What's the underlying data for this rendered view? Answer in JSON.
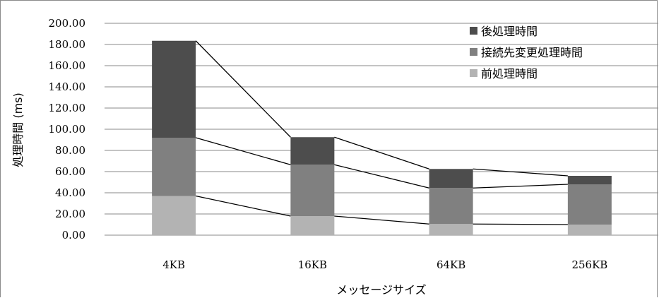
{
  "chart_data": {
    "type": "bar",
    "stacked": true,
    "categories": [
      "4KB",
      "16KB",
      "64KB",
      "256KB"
    ],
    "series": [
      {
        "name": "前処理時間",
        "values": [
          37.0,
          18.0,
          10.5,
          10.0
        ],
        "color": "#b3b3b3"
      },
      {
        "name": "接続先変更処理時間",
        "values": [
          55.0,
          48.5,
          34.0,
          38.0
        ],
        "color": "#808080"
      },
      {
        "name": "後処理時間",
        "values": [
          91.5,
          26.0,
          18.0,
          8.0
        ],
        "color": "#4d4d4d"
      }
    ],
    "ylabel": "処理時間 (ms)",
    "xlabel": "メッセージサイズ",
    "ylim": [
      0,
      200
    ],
    "yticks": [
      "0.00",
      "20.00",
      "40.00",
      "60.00",
      "80.00",
      "100.00",
      "120.00",
      "140.00",
      "160.00",
      "180.00",
      "200.00"
    ],
    "grid": true,
    "legend_position": "top-right",
    "legend_order": [
      "後処理時間",
      "接続先変更処理時間",
      "前処理時間"
    ],
    "series_lines": true
  }
}
